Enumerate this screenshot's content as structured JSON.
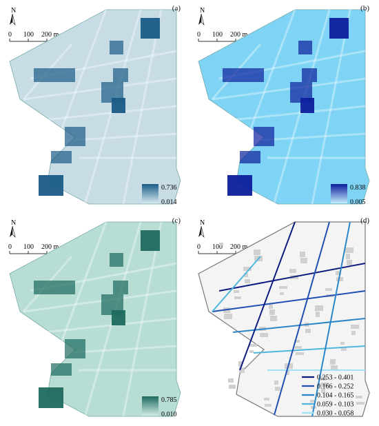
{
  "panels": [
    {
      "id": "a",
      "label": "(a)",
      "north": "N",
      "scale": {
        "zero": "0",
        "mid": "100",
        "end": "200 m"
      },
      "legend": {
        "max": "0.736",
        "min": "0.014",
        "color_high": "#1a5b86",
        "color_low": "#d6e8f2"
      },
      "fill_color": "#c8dce6"
    },
    {
      "id": "b",
      "label": "(b)",
      "north": "N",
      "scale": {
        "zero": "0",
        "mid": "100",
        "end": "200 m"
      },
      "legend": {
        "max": "0.838",
        "min": "0.005",
        "color_high": "#0d1f9c",
        "color_low": "#c4ecfb"
      },
      "fill_color": "#7fd4f5"
    },
    {
      "id": "c",
      "label": "(c)",
      "north": "N",
      "scale": {
        "zero": "0",
        "mid": "100",
        "end": "200 m"
      },
      "legend": {
        "max": "0.785",
        "min": "0.010",
        "color_high": "#1d6a5e",
        "color_low": "#d2ece6"
      },
      "fill_color": "#b8ddd5"
    },
    {
      "id": "d",
      "label": "(d)",
      "north": "N",
      "scale": {
        "zero": "0",
        "mid": "100",
        "end": "200 m"
      },
      "classes": [
        {
          "range": "0.253 - 0.401",
          "color": "#0d1b7e"
        },
        {
          "range": "0.166 - 0.252",
          "color": "#1f4fb4"
        },
        {
          "range": "0.104 - 0.165",
          "color": "#2b86c9"
        },
        {
          "range": "0.059 - 0.103",
          "color": "#4fb6de"
        },
        {
          "range": "0.030 - 0.058",
          "color": "#9fe0f2"
        }
      ]
    }
  ]
}
